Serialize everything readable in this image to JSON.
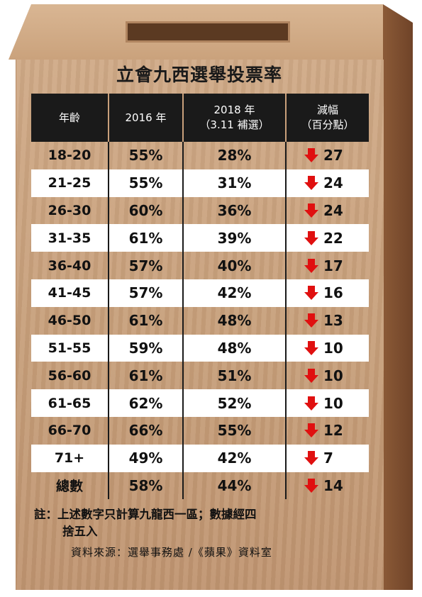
{
  "title": "立會九西選舉投票率",
  "headers": {
    "age": "年齡",
    "y2016": "2016 年",
    "y2018_line1": "2018 年",
    "y2018_line2": "（3.11 補選）",
    "drop_line1": "減幅",
    "drop_line2": "（百分點）"
  },
  "rows": [
    {
      "age": "18-20",
      "v2016": "55%",
      "v2018": "28%",
      "drop": "27"
    },
    {
      "age": "21-25",
      "v2016": "55%",
      "v2018": "31%",
      "drop": "24"
    },
    {
      "age": "26-30",
      "v2016": "60%",
      "v2018": "36%",
      "drop": "24"
    },
    {
      "age": "31-35",
      "v2016": "61%",
      "v2018": "39%",
      "drop": "22"
    },
    {
      "age": "36-40",
      "v2016": "57%",
      "v2018": "40%",
      "drop": "17"
    },
    {
      "age": "41-45",
      "v2016": "57%",
      "v2018": "42%",
      "drop": "16"
    },
    {
      "age": "46-50",
      "v2016": "61%",
      "v2018": "48%",
      "drop": "13"
    },
    {
      "age": "51-55",
      "v2016": "59%",
      "v2018": "48%",
      "drop": "10"
    },
    {
      "age": "56-60",
      "v2016": "61%",
      "v2018": "51%",
      "drop": "10"
    },
    {
      "age": "61-65",
      "v2016": "62%",
      "v2018": "52%",
      "drop": "10"
    },
    {
      "age": "66-70",
      "v2016": "66%",
      "v2018": "55%",
      "drop": "12"
    },
    {
      "age": "71+",
      "v2016": "49%",
      "v2018": "42%",
      "drop": "7"
    },
    {
      "age": "總數",
      "v2016": "58%",
      "v2018": "44%",
      "drop": "14"
    }
  ],
  "note": {
    "line1": "註：上述數字只計算九龍西一區；數據經四",
    "line2": "捨五入"
  },
  "source": "資料來源：選舉事務處 /《蘋果》資料室",
  "colors": {
    "arrow": "#e01010",
    "header_bg": "#1a1a1a",
    "wood": "#c9a17c"
  },
  "icons": {
    "drop": "down-arrow-icon"
  }
}
